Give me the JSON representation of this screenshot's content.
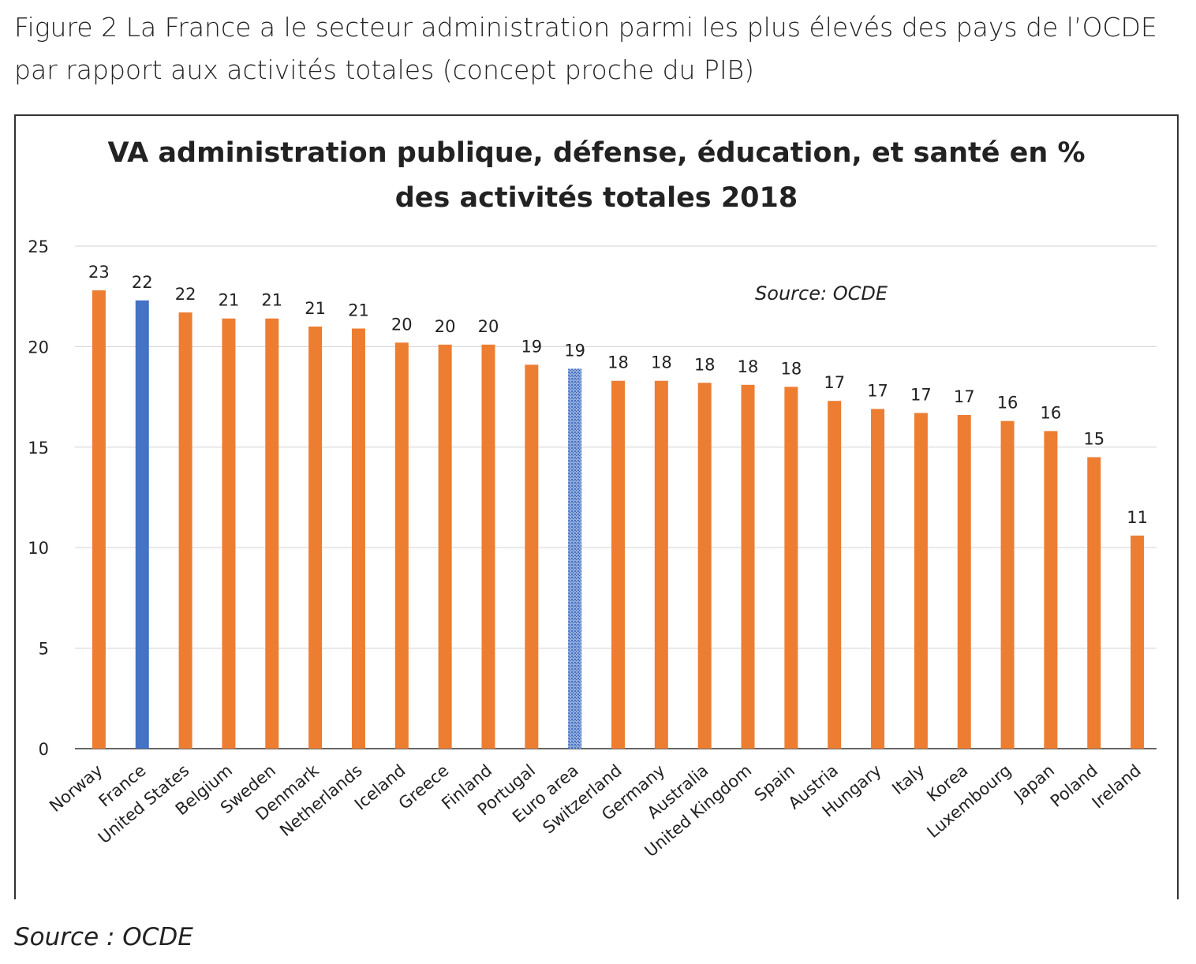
{
  "figure": {
    "caption_line1": "Figure 2 La France a le secteur administration parmi les plus élevés des pays de l’OCDE",
    "caption_line2": "par rapport aux activités totales (concept proche du PIB)",
    "source_below": "Source : OCDE"
  },
  "colors": {
    "default_bar": "#ed7d31",
    "highlight_bar": "#4472c4",
    "euro_bar": "#8faadc",
    "grid": "#d9d9d9",
    "text": "#222222"
  },
  "chart_data": {
    "type": "bar",
    "title_line1": "VA administration publique, défense, éducation, et santé en %",
    "title_line2": "des activités totales 2018",
    "annotation": "Source: OCDE",
    "ylim": [
      0,
      25
    ],
    "yticks": [
      0,
      5,
      10,
      15,
      20,
      25
    ],
    "grid": true,
    "categories": [
      "Norway",
      "France",
      "United States",
      "Belgium",
      "Sweden",
      "Denmark",
      "Netherlands",
      "Iceland",
      "Greece",
      "Finland",
      "Portugal",
      "Euro area",
      "Switzerland",
      "Germany",
      "Australia",
      "United Kingdom",
      "Spain",
      "Austria",
      "Hungary",
      "Italy",
      "Korea",
      "Luxembourg",
      "Japan",
      "Poland",
      "Ireland"
    ],
    "values": [
      22.8,
      22.3,
      21.7,
      21.4,
      21.4,
      21.0,
      20.9,
      20.2,
      20.1,
      20.1,
      19.1,
      18.9,
      18.3,
      18.3,
      18.2,
      18.1,
      18.0,
      17.3,
      16.9,
      16.7,
      16.6,
      16.3,
      15.8,
      14.5,
      10.6
    ],
    "data_labels": [
      "23",
      "22",
      "22",
      "21",
      "21",
      "21",
      "21",
      "20",
      "20",
      "20",
      "19",
      "19",
      "18",
      "18",
      "18",
      "18",
      "18",
      "17",
      "17",
      "17",
      "17",
      "16",
      "16",
      "15",
      "11"
    ],
    "highlight": {
      "France": "highlight_bar",
      "Euro area": "euro_bar"
    }
  }
}
